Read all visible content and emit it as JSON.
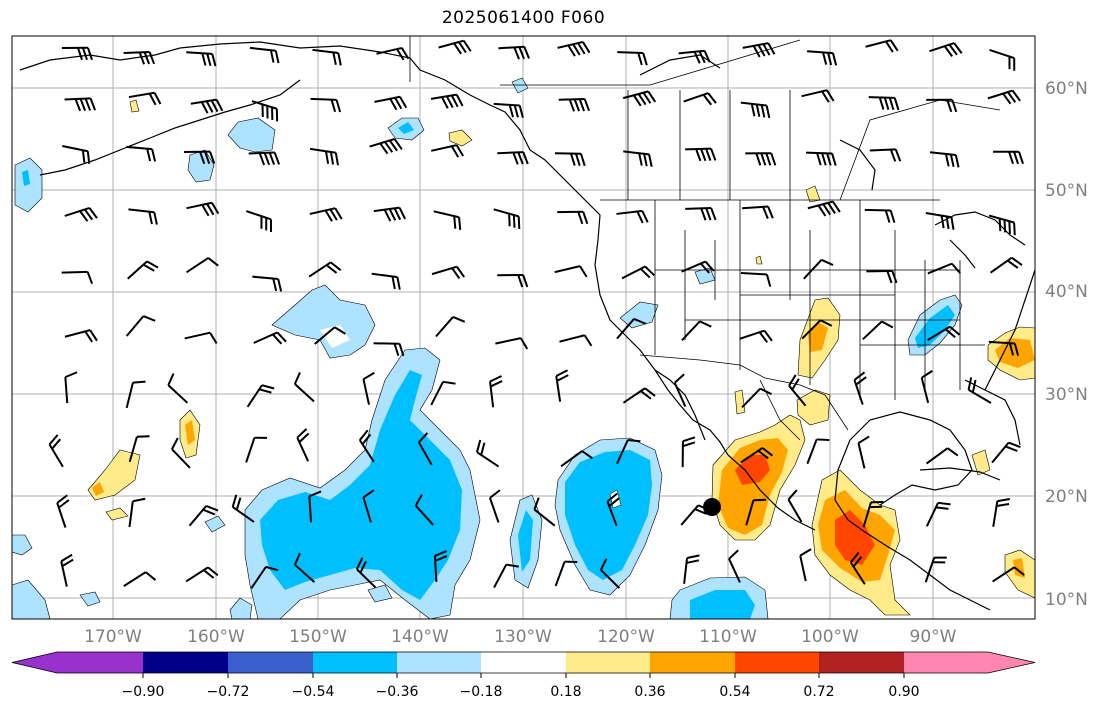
{
  "title": "2025061400 F060",
  "lon_labels": [
    "170°W",
    "160°W",
    "150°W",
    "140°W",
    "130°W",
    "120°W",
    "110°W",
    "100°W",
    "90°W"
  ],
  "lat_labels": [
    "60°N",
    "50°N",
    "40°N",
    "30°N",
    "20°N",
    "10°N"
  ],
  "colorbar": {
    "tick_labels": [
      "−0.90",
      "−0.72",
      "−0.54",
      "−0.36",
      "−0.18",
      "0.18",
      "0.36",
      "0.54",
      "0.72",
      "0.90"
    ],
    "colors": [
      "#9932cc",
      "#00008b",
      "#3a5fcd",
      "#00bfff",
      "#aee3ff",
      "#ffffff",
      "#ffeb8a",
      "#ffa500",
      "#ff4500",
      "#b22222",
      "#ff86b0"
    ],
    "extend": "both"
  },
  "colors": {
    "land_line": "#000000",
    "grid": "#b0b0b0",
    "barb": "#000000"
  },
  "marker": {
    "type": "black-dot"
  }
}
